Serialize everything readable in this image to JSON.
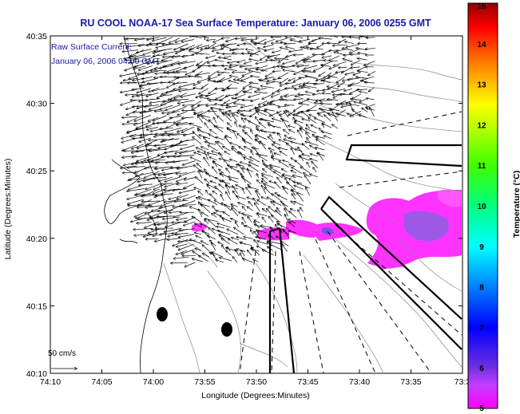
{
  "title": "RU COOL  NOAA-17  Sea Surface Temperature:  January 06, 2006 0255 GMT",
  "legend": {
    "line1": "Raw Surface Current:",
    "line2": "January 06, 2006 04:00 GMT"
  },
  "axes": {
    "ylabel": "Latitude (Degrees:Minutes)",
    "xlabel": "Longitude (Degrees:Minutes)",
    "yticks": [
      "40:35",
      "40:30",
      "40:25",
      "40:20",
      "40:15",
      "40:10"
    ],
    "xticks": [
      "74:10",
      "74:05",
      "74:00",
      "73:55",
      "73:50",
      "73:45",
      "73:40",
      "73:35",
      "73:3"
    ]
  },
  "scale_label": "50 cm/s",
  "colorbar": {
    "label": "Temperature (°C)",
    "ticks": [
      "15",
      "14",
      "13",
      "12",
      "11",
      "10",
      "9",
      "8",
      "7",
      "6",
      "5"
    ],
    "colors": [
      "#ff00ff",
      "#8a2be2",
      "#0000ff",
      "#0080ff",
      "#00ffff",
      "#00ff80",
      "#00ff00",
      "#80ff00",
      "#ffff00",
      "#ff8000",
      "#ff0000",
      "#8b0000"
    ]
  }
}
